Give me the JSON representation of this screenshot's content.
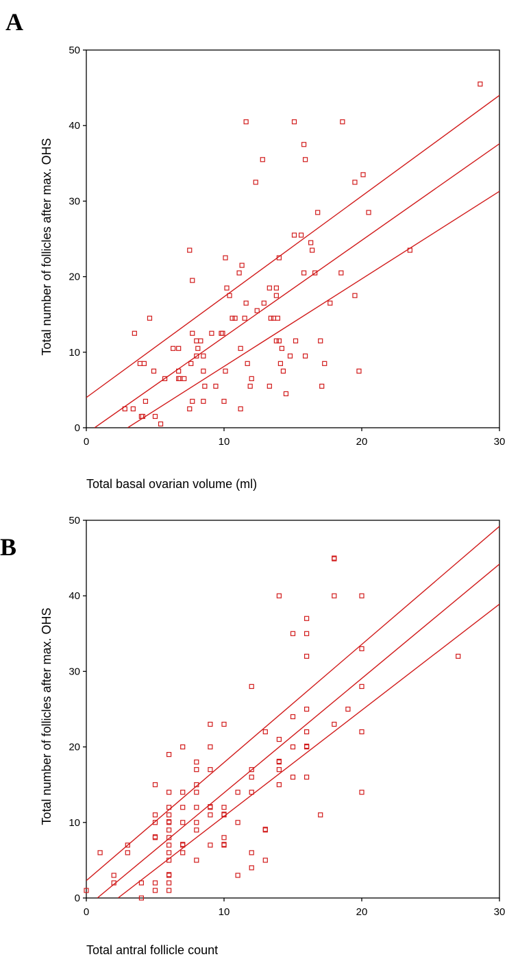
{
  "chart_data": [
    {
      "type": "scatter",
      "panel_label": "A",
      "title": "",
      "xlabel": "Total basal ovarian volume (ml)",
      "ylabel": "Total number of follicles after max. OHS",
      "xlim": [
        0,
        30
      ],
      "ylim": [
        0,
        50
      ],
      "xticks": [
        0,
        10,
        20,
        30
      ],
      "yticks": [
        0,
        10,
        20,
        30,
        40,
        50
      ],
      "marker": "open-square",
      "color": "#d11a1a",
      "grid": false,
      "legend": "none",
      "points": [
        [
          28.6,
          45.5
        ],
        [
          11.6,
          40.5
        ],
        [
          15.1,
          40.5
        ],
        [
          18.6,
          40.5
        ],
        [
          15.8,
          37.5
        ],
        [
          12.8,
          35.5
        ],
        [
          15.9,
          35.5
        ],
        [
          20.1,
          33.5
        ],
        [
          12.3,
          32.5
        ],
        [
          19.5,
          32.5
        ],
        [
          16.8,
          28.5
        ],
        [
          20.5,
          28.5
        ],
        [
          15.1,
          25.5
        ],
        [
          15.6,
          25.5
        ],
        [
          16.3,
          24.5
        ],
        [
          16.4,
          23.5
        ],
        [
          7.5,
          23.5
        ],
        [
          23.5,
          23.5
        ],
        [
          10.1,
          22.5
        ],
        [
          14.0,
          22.5
        ],
        [
          11.3,
          21.5
        ],
        [
          11.1,
          20.5
        ],
        [
          15.8,
          20.5
        ],
        [
          16.6,
          20.5
        ],
        [
          18.5,
          20.5
        ],
        [
          7.7,
          19.5
        ],
        [
          10.2,
          18.5
        ],
        [
          13.3,
          18.5
        ],
        [
          13.8,
          18.5
        ],
        [
          10.4,
          17.5
        ],
        [
          13.8,
          17.5
        ],
        [
          19.5,
          17.5
        ],
        [
          11.6,
          16.5
        ],
        [
          12.9,
          16.5
        ],
        [
          17.7,
          16.5
        ],
        [
          12.4,
          15.5
        ],
        [
          4.6,
          14.5
        ],
        [
          10.6,
          14.5
        ],
        [
          10.8,
          14.5
        ],
        [
          11.5,
          14.5
        ],
        [
          13.4,
          14.5
        ],
        [
          13.6,
          14.5
        ],
        [
          13.9,
          14.5
        ],
        [
          3.5,
          12.5
        ],
        [
          7.7,
          12.5
        ],
        [
          9.1,
          12.5
        ],
        [
          9.8,
          12.5
        ],
        [
          9.9,
          12.5
        ],
        [
          8.0,
          11.5
        ],
        [
          8.3,
          11.5
        ],
        [
          13.8,
          11.5
        ],
        [
          14.0,
          11.5
        ],
        [
          15.2,
          11.5
        ],
        [
          17.0,
          11.5
        ],
        [
          6.3,
          10.5
        ],
        [
          6.7,
          10.5
        ],
        [
          8.1,
          10.5
        ],
        [
          11.2,
          10.5
        ],
        [
          14.2,
          10.5
        ],
        [
          8.0,
          9.5
        ],
        [
          8.5,
          9.5
        ],
        [
          14.8,
          9.5
        ],
        [
          15.9,
          9.5
        ],
        [
          3.9,
          8.5
        ],
        [
          4.2,
          8.5
        ],
        [
          7.6,
          8.5
        ],
        [
          11.7,
          8.5
        ],
        [
          14.1,
          8.5
        ],
        [
          17.3,
          8.5
        ],
        [
          4.9,
          7.5
        ],
        [
          6.7,
          7.5
        ],
        [
          8.5,
          7.5
        ],
        [
          10.1,
          7.5
        ],
        [
          14.3,
          7.5
        ],
        [
          19.8,
          7.5
        ],
        [
          5.7,
          6.5
        ],
        [
          6.7,
          6.5
        ],
        [
          6.8,
          6.5
        ],
        [
          7.1,
          6.5
        ],
        [
          12.0,
          6.5
        ],
        [
          8.6,
          5.5
        ],
        [
          9.4,
          5.5
        ],
        [
          11.9,
          5.5
        ],
        [
          13.3,
          5.5
        ],
        [
          17.1,
          5.5
        ],
        [
          14.5,
          4.5
        ],
        [
          4.3,
          3.5
        ],
        [
          7.7,
          3.5
        ],
        [
          8.5,
          3.5
        ],
        [
          10.0,
          3.5
        ],
        [
          2.8,
          2.5
        ],
        [
          3.4,
          2.5
        ],
        [
          7.5,
          2.5
        ],
        [
          11.2,
          2.5
        ],
        [
          4.0,
          1.5
        ],
        [
          4.1,
          1.5
        ],
        [
          5.0,
          1.5
        ],
        [
          5.4,
          0.5
        ]
      ],
      "fit_line": {
        "x": [
          0.6,
          30
        ],
        "y": [
          0,
          37.6
        ]
      },
      "ci_upper": {
        "x": [
          0,
          30
        ],
        "y": [
          4,
          44
        ]
      },
      "ci_lower": {
        "x": [
          3,
          30
        ],
        "y": [
          0,
          31.3
        ]
      }
    },
    {
      "type": "scatter",
      "panel_label": "B",
      "title": "",
      "xlabel": "Total antral follicle count",
      "ylabel": "Total number of follicles after max. OHS",
      "xlim": [
        0,
        30
      ],
      "ylim": [
        0,
        50
      ],
      "xticks": [
        0,
        10,
        20,
        30
      ],
      "yticks": [
        0,
        10,
        20,
        30,
        40,
        50
      ],
      "marker": "open-square",
      "color": "#d11a1a",
      "grid": false,
      "legend": "none",
      "points": [
        [
          18,
          45
        ],
        [
          18,
          44.9
        ],
        [
          14,
          40
        ],
        [
          18,
          40
        ],
        [
          20,
          40
        ],
        [
          16,
          37
        ],
        [
          15,
          35
        ],
        [
          16,
          35
        ],
        [
          20,
          33
        ],
        [
          16,
          32
        ],
        [
          27,
          32
        ],
        [
          12,
          28
        ],
        [
          20,
          28
        ],
        [
          16,
          25
        ],
        [
          19,
          25
        ],
        [
          15,
          24
        ],
        [
          9,
          23
        ],
        [
          10,
          23
        ],
        [
          18,
          23
        ],
        [
          13,
          22
        ],
        [
          16,
          22
        ],
        [
          20,
          22
        ],
        [
          14,
          21
        ],
        [
          7,
          20
        ],
        [
          9,
          20
        ],
        [
          15,
          20
        ],
        [
          16,
          20
        ],
        [
          16,
          20.1
        ],
        [
          6,
          19
        ],
        [
          8,
          18
        ],
        [
          14,
          18
        ],
        [
          14,
          18.1
        ],
        [
          8,
          17
        ],
        [
          9,
          17
        ],
        [
          12,
          17
        ],
        [
          14,
          17
        ],
        [
          12,
          16
        ],
        [
          15,
          16
        ],
        [
          16,
          16
        ],
        [
          5,
          15
        ],
        [
          8,
          15
        ],
        [
          14,
          15
        ],
        [
          6,
          14
        ],
        [
          7,
          14
        ],
        [
          8,
          14
        ],
        [
          11,
          14
        ],
        [
          12,
          14
        ],
        [
          20,
          14
        ],
        [
          6,
          12
        ],
        [
          7,
          12
        ],
        [
          8,
          12
        ],
        [
          9,
          12
        ],
        [
          9,
          12.1
        ],
        [
          10,
          12
        ],
        [
          5,
          11
        ],
        [
          6,
          11
        ],
        [
          10,
          11
        ],
        [
          10,
          11.1
        ],
        [
          17,
          11
        ],
        [
          9,
          11
        ],
        [
          5,
          10
        ],
        [
          6,
          10
        ],
        [
          6,
          10.1
        ],
        [
          7,
          10
        ],
        [
          8,
          10
        ],
        [
          11,
          10
        ],
        [
          6,
          9
        ],
        [
          8,
          9
        ],
        [
          13,
          9
        ],
        [
          13,
          9.1
        ],
        [
          5,
          8
        ],
        [
          5,
          8.1
        ],
        [
          6,
          8
        ],
        [
          10,
          8
        ],
        [
          3,
          7
        ],
        [
          6,
          7
        ],
        [
          7,
          7
        ],
        [
          7,
          7.1
        ],
        [
          9,
          7
        ],
        [
          10,
          7
        ],
        [
          10,
          7.1
        ],
        [
          1,
          6
        ],
        [
          3,
          6
        ],
        [
          6,
          6
        ],
        [
          7,
          6
        ],
        [
          12,
          6
        ],
        [
          6,
          5
        ],
        [
          8,
          5
        ],
        [
          13,
          5
        ],
        [
          12,
          4
        ],
        [
          2,
          3
        ],
        [
          6,
          3
        ],
        [
          6,
          3.1
        ],
        [
          11,
          3
        ],
        [
          2,
          2
        ],
        [
          4,
          2
        ],
        [
          5,
          2
        ],
        [
          6,
          2
        ],
        [
          0,
          1
        ],
        [
          5,
          1
        ],
        [
          6,
          1
        ],
        [
          4,
          0
        ]
      ],
      "fit_line": {
        "x": [
          0.8,
          30
        ],
        "y": [
          0,
          44.2
        ]
      },
      "ci_upper": {
        "x": [
          0,
          30
        ],
        "y": [
          2.3,
          49.2
        ]
      },
      "ci_lower": {
        "x": [
          2.3,
          30
        ],
        "y": [
          0,
          38.9
        ]
      }
    }
  ]
}
